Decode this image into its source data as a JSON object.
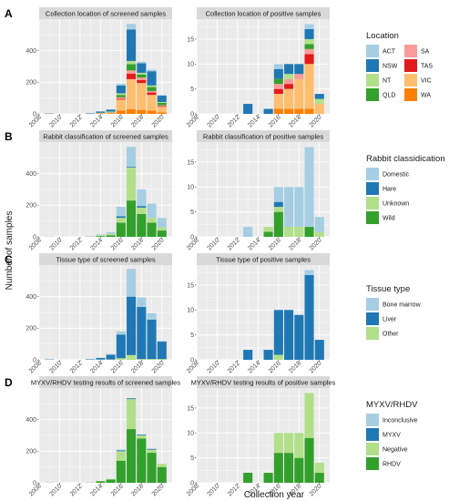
{
  "figure": {
    "xlabel": "Collection year",
    "ylabel": "Number of samples"
  },
  "colors": {
    "ACT": "#a6cee3",
    "NSW": "#1f78b4",
    "NT": "#b2df8a",
    "QLD": "#33a02c",
    "SA": "#fb9a99",
    "TAS": "#e31a1c",
    "VIC": "#fdbf6f",
    "WA": "#ff7f00",
    "Domestic": "#a6cee3",
    "Hare": "#1f78b4",
    "Unknown": "#b2df8a",
    "Wild": "#33a02c",
    "Bone marrow": "#a6cee3",
    "Liver": "#1f78b4",
    "Other": "#b2df8a",
    "Inconclusive": "#a6cee3",
    "MYXV": "#1f78b4",
    "Negative": "#b2df8a",
    "RHDV": "#33a02c"
  },
  "rows": [
    {
      "letter": "A",
      "legend": {
        "title": "Location",
        "columns": [
          [
            "ACT",
            "NSW",
            "NT",
            "QLD"
          ],
          [
            "SA",
            "TAS",
            "VIC",
            "WA"
          ]
        ]
      }
    },
    {
      "letter": "B",
      "legend": {
        "title": "Rabbit classidication",
        "columns": [
          [
            "Domestic",
            "Hare",
            "Unknown",
            "Wild"
          ]
        ]
      }
    },
    {
      "letter": "C",
      "legend": {
        "title": "Tissue type",
        "columns": [
          [
            "Bone marrow",
            "Liver",
            "Other"
          ]
        ]
      }
    },
    {
      "letter": "D",
      "legend": {
        "title": "MYXV/RHDV",
        "columns": [
          [
            "Inconclusive",
            "MYXV",
            "Negative",
            "RHDV"
          ]
        ]
      }
    }
  ],
  "chart_data": [
    {
      "type": "bar",
      "stacked": true,
      "title": "Collection location of screened samples",
      "xlabel": "",
      "ylabel": "Number of samples",
      "xlim": [
        2008,
        2021
      ],
      "ylim": [
        0,
        600
      ],
      "xticks": [
        2008,
        2010,
        2012,
        2014,
        2016,
        2018,
        2020
      ],
      "yticks": [
        0,
        200,
        400
      ],
      "legend": "right",
      "grid": true,
      "x": [
        2009,
        2013,
        2014,
        2015,
        2016,
        2017,
        2018,
        2019,
        2020
      ],
      "series": [
        {
          "name": "WA",
          "values": [
            0,
            0,
            2,
            3,
            20,
            30,
            25,
            20,
            10
          ]
        },
        {
          "name": "VIC",
          "values": [
            0,
            0,
            3,
            5,
            70,
            190,
            170,
            100,
            35
          ]
        },
        {
          "name": "TAS",
          "values": [
            0,
            0,
            0,
            0,
            5,
            35,
            20,
            15,
            5
          ]
        },
        {
          "name": "SA",
          "values": [
            0,
            0,
            0,
            2,
            10,
            20,
            15,
            10,
            5
          ]
        },
        {
          "name": "QLD",
          "values": [
            0,
            0,
            2,
            3,
            15,
            40,
            20,
            25,
            15
          ]
        },
        {
          "name": "NT",
          "values": [
            0,
            0,
            0,
            2,
            10,
            20,
            10,
            10,
            5
          ]
        },
        {
          "name": "NSW",
          "values": [
            2,
            3,
            8,
            12,
            50,
            200,
            60,
            90,
            40
          ]
        },
        {
          "name": "ACT",
          "values": [
            0,
            0,
            0,
            0,
            10,
            35,
            10,
            10,
            5
          ]
        }
      ]
    },
    {
      "type": "bar",
      "stacked": true,
      "title": "Collection location of positive samples",
      "xlabel": "",
      "ylabel": "",
      "xlim": [
        2008,
        2021
      ],
      "ylim": [
        0,
        19
      ],
      "xticks": [
        2008,
        2010,
        2012,
        2014,
        2016,
        2018,
        2020
      ],
      "yticks": [
        0,
        5,
        10,
        15
      ],
      "legend": "right",
      "grid": true,
      "x": [
        2013,
        2015,
        2016,
        2017,
        2018,
        2019,
        2020
      ],
      "series": [
        {
          "name": "WA",
          "values": [
            0,
            0,
            1,
            1,
            1,
            1,
            0
          ]
        },
        {
          "name": "VIC",
          "values": [
            0,
            0,
            3,
            4,
            6,
            9,
            2
          ]
        },
        {
          "name": "TAS",
          "values": [
            0,
            0,
            1,
            1,
            0,
            2,
            0
          ]
        },
        {
          "name": "SA",
          "values": [
            0,
            0,
            1,
            1,
            1,
            1,
            0
          ]
        },
        {
          "name": "QLD",
          "values": [
            0,
            0,
            1,
            0,
            0,
            1,
            0
          ]
        },
        {
          "name": "NT",
          "values": [
            0,
            0,
            0,
            1,
            0,
            1,
            1
          ]
        },
        {
          "name": "NSW",
          "values": [
            2,
            1,
            2,
            2,
            2,
            2,
            1
          ]
        },
        {
          "name": "ACT",
          "values": [
            0,
            0,
            1,
            0,
            0,
            1,
            0
          ]
        }
      ]
    },
    {
      "type": "bar",
      "stacked": true,
      "title": "Rabbit classification of screened samples",
      "xlabel": "",
      "ylabel": "Number of samples",
      "xlim": [
        2008,
        2021
      ],
      "ylim": [
        0,
        600
      ],
      "xticks": [
        2008,
        2010,
        2012,
        2014,
        2016,
        2018,
        2020
      ],
      "yticks": [
        0,
        200,
        400
      ],
      "legend": "right",
      "grid": true,
      "x": [
        2009,
        2013,
        2014,
        2015,
        2016,
        2017,
        2018,
        2019,
        2020
      ],
      "series": [
        {
          "name": "Wild",
          "values": [
            0,
            0,
            5,
            10,
            90,
            230,
            145,
            90,
            40
          ]
        },
        {
          "name": "Unknown",
          "values": [
            0,
            0,
            5,
            10,
            30,
            210,
            40,
            30,
            20
          ]
        },
        {
          "name": "Hare",
          "values": [
            0,
            0,
            0,
            0,
            10,
            5,
            10,
            0,
            0
          ]
        },
        {
          "name": "Domestic",
          "values": [
            2,
            3,
            5,
            10,
            60,
            125,
            105,
            90,
            60
          ]
        }
      ]
    },
    {
      "type": "bar",
      "stacked": true,
      "title": "Rabbit classification of positive samples",
      "xlabel": "",
      "ylabel": "",
      "xlim": [
        2008,
        2021
      ],
      "ylim": [
        0,
        19
      ],
      "xticks": [
        2008,
        2010,
        2012,
        2014,
        2016,
        2018,
        2020
      ],
      "yticks": [
        0,
        5,
        10,
        15
      ],
      "legend": "right",
      "grid": true,
      "x": [
        2013,
        2015,
        2016,
        2017,
        2018,
        2019,
        2020
      ],
      "series": [
        {
          "name": "Wild",
          "values": [
            0,
            1,
            5,
            0,
            0,
            2,
            0
          ]
        },
        {
          "name": "Unknown",
          "values": [
            0,
            1,
            1,
            2,
            2,
            0,
            1
          ]
        },
        {
          "name": "Hare",
          "values": [
            0,
            0,
            1,
            0,
            0,
            0,
            0
          ]
        },
        {
          "name": "Domestic",
          "values": [
            2,
            0,
            3,
            8,
            8,
            16,
            3
          ]
        }
      ]
    },
    {
      "type": "bar",
      "stacked": true,
      "title": "Tissue type of screened samples",
      "xlabel": "",
      "ylabel": "Number of samples",
      "xlim": [
        2008,
        2021
      ],
      "ylim": [
        0,
        600
      ],
      "xticks": [
        2008,
        2010,
        2012,
        2014,
        2016,
        2018,
        2020
      ],
      "yticks": [
        0,
        200,
        400
      ],
      "legend": "right",
      "grid": true,
      "x": [
        2009,
        2013,
        2014,
        2015,
        2016,
        2017,
        2018,
        2019,
        2020
      ],
      "series": [
        {
          "name": "Other",
          "values": [
            0,
            0,
            2,
            2,
            10,
            30,
            5,
            5,
            5
          ]
        },
        {
          "name": "Liver",
          "values": [
            2,
            3,
            10,
            30,
            150,
            370,
            330,
            250,
            110
          ]
        },
        {
          "name": "Bone marrow",
          "values": [
            0,
            0,
            0,
            5,
            20,
            175,
            60,
            40,
            5
          ]
        }
      ]
    },
    {
      "type": "bar",
      "stacked": true,
      "title": "Tissue type of positive samples",
      "xlabel": "",
      "ylabel": "",
      "xlim": [
        2008,
        2021
      ],
      "ylim": [
        0,
        19
      ],
      "xticks": [
        2008,
        2010,
        2012,
        2014,
        2016,
        2018,
        2020
      ],
      "yticks": [
        0,
        5,
        10,
        15
      ],
      "legend": "right",
      "grid": true,
      "x": [
        2013,
        2015,
        2016,
        2017,
        2018,
        2019,
        2020
      ],
      "series": [
        {
          "name": "Other",
          "values": [
            0,
            0,
            1,
            0,
            0,
            0,
            0
          ]
        },
        {
          "name": "Liver",
          "values": [
            2,
            2,
            9,
            10,
            9,
            17,
            4
          ]
        },
        {
          "name": "Bone marrow",
          "values": [
            0,
            0,
            0,
            0,
            0,
            1,
            0
          ]
        }
      ]
    },
    {
      "type": "bar",
      "stacked": true,
      "title": "MYXV/RHDV testing results of screened samples",
      "xlabel": "Collection year",
      "ylabel": "Number of samples",
      "xlim": [
        2008,
        2021
      ],
      "ylim": [
        0,
        600
      ],
      "xticks": [
        2008,
        2010,
        2012,
        2014,
        2016,
        2018,
        2020
      ],
      "yticks": [
        0,
        200,
        400
      ],
      "legend": "right",
      "grid": true,
      "x": [
        2009,
        2013,
        2014,
        2015,
        2016,
        2017,
        2018,
        2019,
        2020
      ],
      "series": [
        {
          "name": "RHDV",
          "values": [
            0,
            0,
            10,
            20,
            140,
            340,
            280,
            190,
            100
          ]
        },
        {
          "name": "Negative",
          "values": [
            0,
            0,
            2,
            5,
            60,
            190,
            20,
            20,
            20
          ]
        },
        {
          "name": "MYXV",
          "values": [
            0,
            0,
            0,
            0,
            5,
            5,
            5,
            5,
            0
          ]
        },
        {
          "name": "Inconclusive",
          "values": [
            2,
            3,
            0,
            0,
            5,
            0,
            0,
            0,
            0
          ]
        }
      ]
    },
    {
      "type": "bar",
      "stacked": true,
      "title": "MYXV/RHDV testing results of positive samples",
      "xlabel": "Collection year",
      "ylabel": "",
      "xlim": [
        2008,
        2021
      ],
      "ylim": [
        0,
        19
      ],
      "xticks": [
        2008,
        2010,
        2012,
        2014,
        2016,
        2018,
        2020
      ],
      "yticks": [
        0,
        5,
        10,
        15
      ],
      "legend": "right",
      "grid": true,
      "x": [
        2013,
        2015,
        2016,
        2017,
        2018,
        2019,
        2020
      ],
      "series": [
        {
          "name": "RHDV",
          "values": [
            2,
            2,
            6,
            6,
            5,
            9,
            2
          ]
        },
        {
          "name": "Negative",
          "values": [
            0,
            0,
            4,
            4,
            5,
            9,
            2
          ]
        },
        {
          "name": "MYXV",
          "values": [
            0,
            0,
            0,
            0,
            0,
            0,
            0
          ]
        },
        {
          "name": "Inconclusive",
          "values": [
            0,
            0,
            0,
            0,
            0,
            0,
            0
          ]
        }
      ]
    }
  ]
}
